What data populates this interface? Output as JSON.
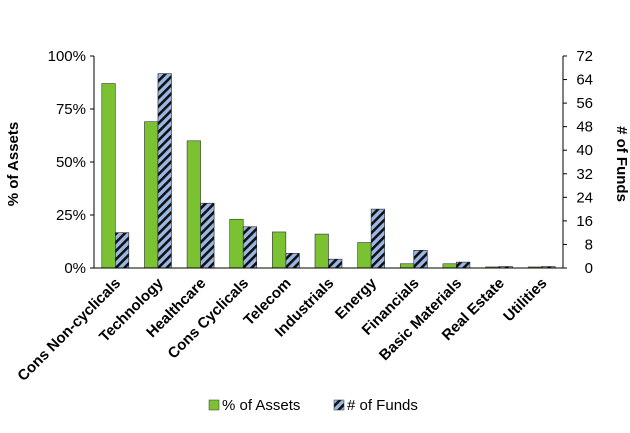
{
  "chart_data": {
    "type": "bar",
    "categories": [
      "Cons Non-cyclicals",
      "Technology",
      "Healthcare",
      "Cons Cyclicals",
      "Telecom",
      "Industrials",
      "Energy",
      "Financials",
      "Basic Materials",
      "Real Estate",
      "Utilities"
    ],
    "series": [
      {
        "name": "% of Assets",
        "axis": "left",
        "color": "#7ac231",
        "values": [
          87,
          69,
          60,
          23,
          17,
          16,
          12,
          2,
          2,
          0.5,
          0.5
        ]
      },
      {
        "name": "# of Funds",
        "axis": "right",
        "pattern": "black-and-light-blue diagonal hatch",
        "values": [
          12,
          66,
          22,
          14,
          5,
          3,
          20,
          6,
          2,
          0.5,
          0.5
        ]
      }
    ],
    "left_axis": {
      "label": "% of Assets",
      "ylim": [
        0,
        100
      ],
      "ticks": [
        "0%",
        "25%",
        "50%",
        "75%",
        "100%"
      ],
      "tick_values": [
        0,
        25,
        50,
        75,
        100
      ]
    },
    "right_axis": {
      "label": "# of Funds",
      "ylim": [
        0,
        72
      ],
      "ticks": [
        "0",
        "8",
        "16",
        "24",
        "32",
        "40",
        "48",
        "56",
        "64",
        "72"
      ],
      "tick_values": [
        0,
        8,
        16,
        24,
        32,
        40,
        48,
        56,
        64,
        72
      ]
    },
    "legend": {
      "position": "bottom",
      "items": [
        "% of Assets",
        "# of Funds"
      ]
    },
    "grid": false
  }
}
